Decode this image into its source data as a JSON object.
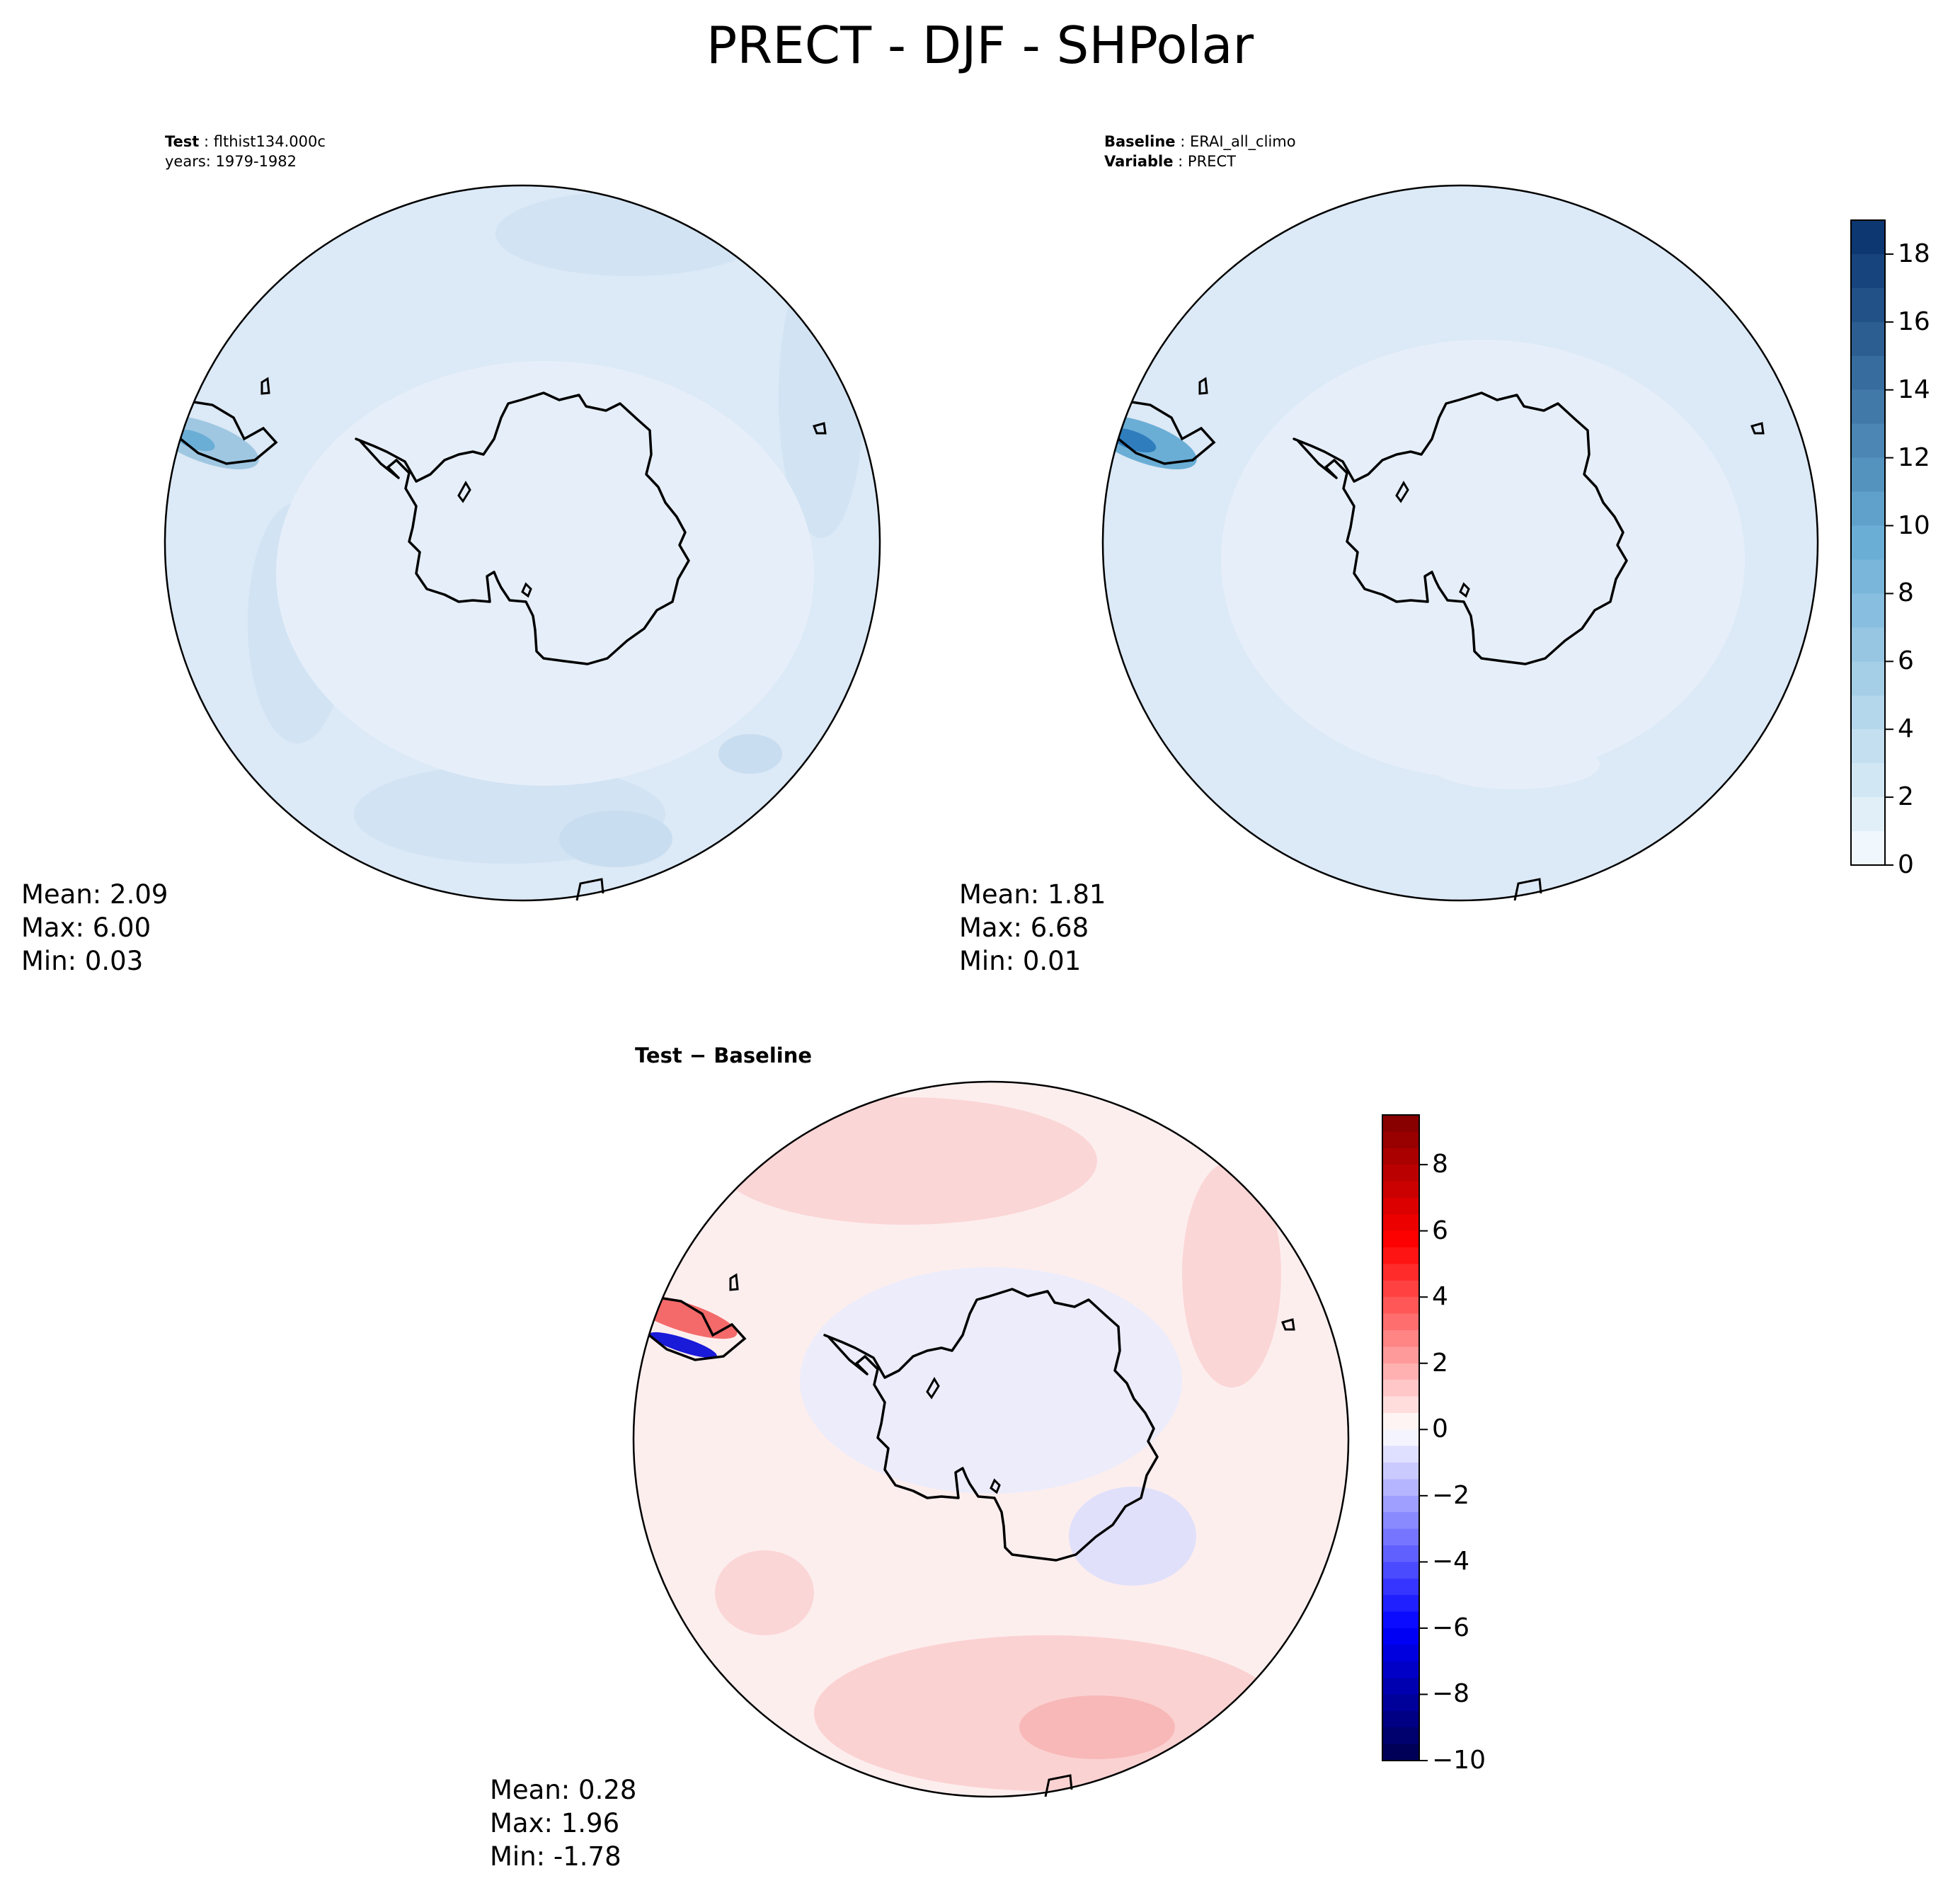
{
  "figure": {
    "title": "PRECT - DJF - SHPolar"
  },
  "panels": {
    "test": {
      "label": "Test",
      "name": "flthist134.000c",
      "years_line": "years: 1979-1982",
      "stats": {
        "mean": "Mean:  2.09",
        "max": "Max:  6.00",
        "min": "Min:  0.03"
      }
    },
    "baseline": {
      "label": "Baseline",
      "name": "ERAI_all_climo",
      "variable_label": "Variable",
      "variable": "PRECT",
      "stats": {
        "mean": "Mean:  1.81",
        "max": "Max:  6.68",
        "min": "Min:  0.01"
      }
    },
    "difference": {
      "title_a": "Test",
      "title_sep": " − ",
      "title_b": "Baseline",
      "stats": {
        "mean": "Mean:  0.28",
        "max": "Max:  1.96",
        "min": "Min: -1.78"
      }
    }
  },
  "chart_data": [
    {
      "type": "heatmap",
      "projection": "south-polar-stereographic",
      "panel": "test",
      "variable": "PRECT",
      "season": "DJF",
      "region": "SHPolar",
      "stats": {
        "mean": 2.09,
        "max": 6.0,
        "min": 0.03
      },
      "colormap": "Blues",
      "colorbar_ticks": [
        0,
        2,
        4,
        6,
        8,
        10,
        12,
        14,
        16,
        18
      ],
      "colorbar_range": [
        0,
        19
      ]
    },
    {
      "type": "heatmap",
      "projection": "south-polar-stereographic",
      "panel": "baseline",
      "variable": "PRECT",
      "season": "DJF",
      "region": "SHPolar",
      "stats": {
        "mean": 1.81,
        "max": 6.68,
        "min": 0.01
      },
      "colormap": "Blues",
      "colorbar_ticks": [
        0,
        2,
        4,
        6,
        8,
        10,
        12,
        14,
        16,
        18
      ],
      "colorbar_range": [
        0,
        19
      ]
    },
    {
      "type": "heatmap",
      "projection": "south-polar-stereographic",
      "panel": "difference",
      "variable": "PRECT",
      "season": "DJF",
      "region": "SHPolar",
      "stats": {
        "mean": 0.28,
        "max": 1.96,
        "min": -1.78
      },
      "colormap": "seismic",
      "colorbar_ticks": [
        -10,
        -8,
        -6,
        -4,
        -2,
        0,
        2,
        4,
        6,
        8
      ],
      "colorbar_range": [
        -10,
        9.5
      ]
    }
  ],
  "colorbars": {
    "sequential": {
      "ticks": [
        "0",
        "2",
        "4",
        "6",
        "8",
        "10",
        "12",
        "14",
        "16",
        "18"
      ],
      "min": 0,
      "max": 19,
      "levels": 19,
      "color_low": "#f7fbff",
      "color_high": "#08306b"
    },
    "diverging": {
      "ticks": [
        "−10",
        "−8",
        "−6",
        "−4",
        "−2",
        "0",
        "2",
        "4",
        "6",
        "8"
      ],
      "min": -10,
      "max": 9.5,
      "levels": 39,
      "color_low": "#00004d",
      "color_mid": "#ffffff",
      "color_high": "#800000"
    }
  },
  "colors": {
    "ocean_test": "#dce9f6",
    "ocean_test_dark": "#cfe0f1",
    "ocean_baseline": "#dce9f6",
    "land_ice": "#f2f7fc",
    "diff_background": "#fdeeee",
    "diff_positive": "#fbd2d2",
    "diff_negative": "#ececfb",
    "coastline": "#000000"
  }
}
